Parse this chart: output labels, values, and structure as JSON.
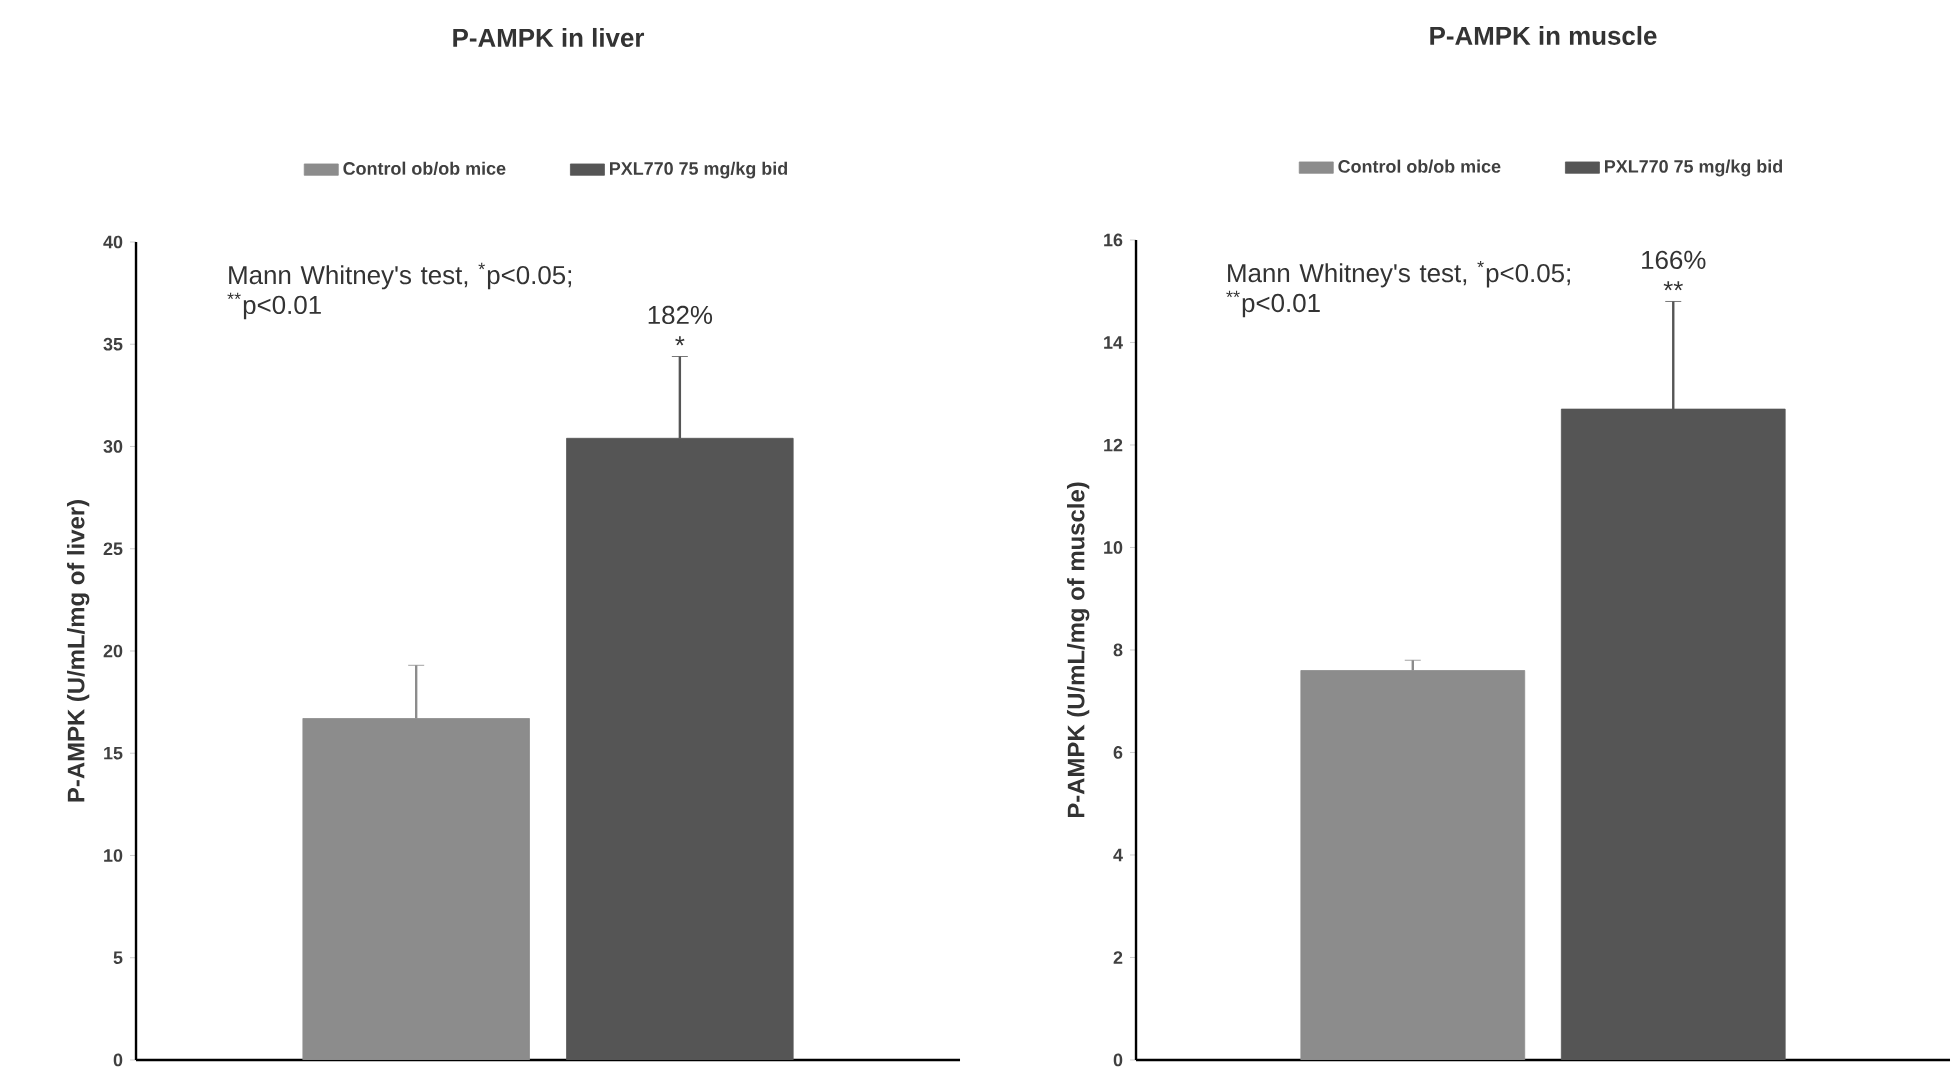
{
  "chart_data": [
    {
      "type": "bar",
      "title": "P-AMPK in liver",
      "ylabel": "P-AMPK (U/mL/mg of liver)",
      "categories": [
        null
      ],
      "series": [
        {
          "name": "Control ob/ob mice",
          "color": "#8c8c8c",
          "values": [
            16.7
          ],
          "errors": [
            [
              16.7,
              19.3
            ]
          ]
        },
        {
          "name": "PXL770 75 mg/kg bid",
          "color": "#555555",
          "values": [
            30.4
          ],
          "errors": [
            [
              30.4,
              34.4
            ]
          ]
        }
      ],
      "ylim": [
        0,
        40
      ],
      "yticks": [
        0,
        5,
        10,
        15,
        20,
        25,
        30,
        35,
        40
      ],
      "legend": "top",
      "annotations": [
        "Mann Whitney's test, $^{*}$p<0.05; $^{**}$p<0.01",
        "182%",
        "*"
      ]
    },
    {
      "type": "bar",
      "title": "P-AMPK in muscle",
      "ylabel": "P-AMPK (U/mL/mg of muscle)",
      "categories": [
        null
      ],
      "series": [
        {
          "name": "Control ob/ob mice",
          "color": "#8c8c8c",
          "values": [
            7.6
          ],
          "errors": [
            [
              7.6,
              7.8
            ]
          ]
        },
        {
          "name": "PXL770 75 mg/kg bid",
          "color": "#555555",
          "values": [
            12.7
          ],
          "errors": [
            [
              12.7,
              14.8
            ]
          ]
        }
      ],
      "ylim": [
        0,
        16
      ],
      "yticks": [
        0,
        2,
        4,
        6,
        8,
        10,
        12,
        14,
        16
      ],
      "legend": "top",
      "annotations": [
        "Mann Whitney's test, $^{*}$p<0.05; $^{**}$p<0.01",
        "166%",
        "**"
      ]
    }
  ]
}
